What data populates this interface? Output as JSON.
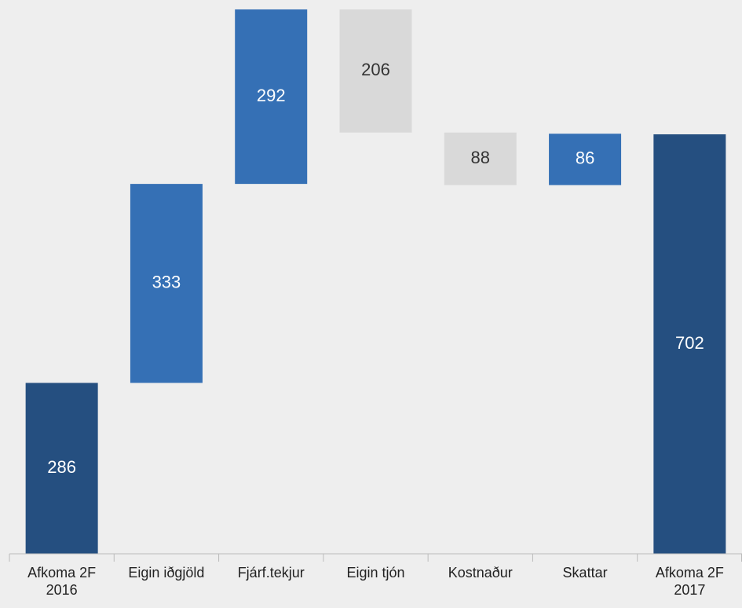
{
  "chart_data": {
    "type": "waterfall",
    "categories": [
      "Afkoma 2F 2016",
      "Eigin iðgjöld",
      "Fjárf.tekjur",
      "Eigin tjón",
      "Kostnaður",
      "Skattar",
      "Afkoma 2F 2017"
    ],
    "values": [
      286,
      333,
      292,
      -206,
      -88,
      86,
      702
    ],
    "value_labels": [
      "286",
      "333",
      "292",
      "206",
      "88",
      "86",
      "702"
    ],
    "measures": [
      "absolute",
      "relative",
      "relative",
      "relative",
      "relative",
      "relative",
      "absolute"
    ],
    "colors": [
      "#254f80",
      "#3570b5",
      "#3570b5",
      "#d9d9d9",
      "#d9d9d9",
      "#3570b5",
      "#254f80"
    ]
  }
}
